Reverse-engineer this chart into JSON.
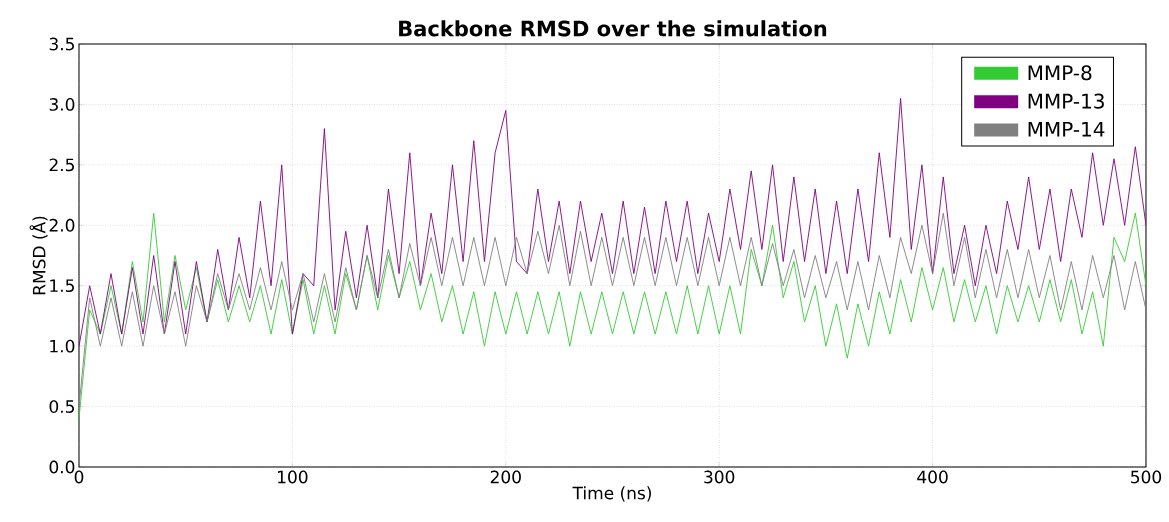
{
  "chart_data": {
    "type": "line",
    "title": "Backbone RMSD over the simulation",
    "xlabel": "Time (ns)",
    "ylabel": "RMSD (Å)",
    "x": [
      0,
      5,
      10,
      15,
      20,
      25,
      30,
      35,
      40,
      45,
      50,
      55,
      60,
      65,
      70,
      75,
      80,
      85,
      90,
      95,
      100,
      105,
      110,
      115,
      120,
      125,
      130,
      135,
      140,
      145,
      150,
      155,
      160,
      165,
      170,
      175,
      180,
      185,
      190,
      195,
      200,
      205,
      210,
      215,
      220,
      225,
      230,
      235,
      240,
      245,
      250,
      255,
      260,
      265,
      270,
      275,
      280,
      285,
      290,
      295,
      300,
      305,
      310,
      315,
      320,
      325,
      330,
      335,
      340,
      345,
      350,
      355,
      360,
      365,
      370,
      375,
      380,
      385,
      390,
      395,
      400,
      405,
      410,
      415,
      420,
      425,
      430,
      435,
      440,
      445,
      450,
      455,
      460,
      465,
      470,
      475,
      480,
      485,
      490,
      495,
      500
    ],
    "series": [
      {
        "name": "MMP-8",
        "color": "#33cc33",
        "values": [
          0.4,
          1.3,
          1.1,
          1.5,
          1.1,
          1.7,
          1.2,
          2.1,
          1.2,
          1.75,
          1.3,
          1.65,
          1.2,
          1.55,
          1.2,
          1.5,
          1.2,
          1.5,
          1.1,
          1.55,
          1.1,
          1.55,
          1.1,
          1.5,
          1.1,
          1.6,
          1.3,
          1.75,
          1.3,
          1.75,
          1.4,
          1.7,
          1.3,
          1.6,
          1.2,
          1.5,
          1.1,
          1.45,
          1.0,
          1.45,
          1.1,
          1.45,
          1.1,
          1.45,
          1.1,
          1.45,
          1.0,
          1.45,
          1.1,
          1.45,
          1.1,
          1.45,
          1.1,
          1.45,
          1.1,
          1.45,
          1.1,
          1.5,
          1.1,
          1.5,
          1.1,
          1.5,
          1.1,
          1.8,
          1.5,
          2.0,
          1.4,
          1.7,
          1.2,
          1.5,
          1.0,
          1.35,
          0.9,
          1.35,
          1.0,
          1.45,
          1.1,
          1.55,
          1.2,
          1.65,
          1.3,
          1.65,
          1.2,
          1.55,
          1.2,
          1.5,
          1.1,
          1.5,
          1.2,
          1.5,
          1.2,
          1.55,
          1.2,
          1.55,
          1.1,
          1.45,
          1.0,
          1.9,
          1.7,
          2.1,
          1.5
        ]
      },
      {
        "name": "MMP-13",
        "color": "#800080",
        "values": [
          1.0,
          1.5,
          1.1,
          1.6,
          1.1,
          1.65,
          1.1,
          1.75,
          1.1,
          1.7,
          1.1,
          1.7,
          1.2,
          1.8,
          1.3,
          1.9,
          1.4,
          2.2,
          1.5,
          2.5,
          1.1,
          1.6,
          1.5,
          2.8,
          1.3,
          1.95,
          1.4,
          2.0,
          1.4,
          2.3,
          1.6,
          2.6,
          1.5,
          2.1,
          1.6,
          2.5,
          1.7,
          2.7,
          1.7,
          2.6,
          2.95,
          1.7,
          1.6,
          2.3,
          1.7,
          2.2,
          1.6,
          2.2,
          1.7,
          2.1,
          1.6,
          2.2,
          1.6,
          2.15,
          1.6,
          2.2,
          1.7,
          2.2,
          1.6,
          2.1,
          1.7,
          2.3,
          1.8,
          2.45,
          1.8,
          2.5,
          1.7,
          2.4,
          1.7,
          2.3,
          1.6,
          2.2,
          1.6,
          2.3,
          1.7,
          2.6,
          1.9,
          3.05,
          1.8,
          2.5,
          1.6,
          2.4,
          1.6,
          2.0,
          1.5,
          2.0,
          1.6,
          2.2,
          1.8,
          2.4,
          1.8,
          2.3,
          1.7,
          2.3,
          1.9,
          2.6,
          2.0,
          2.55,
          2.0,
          2.65,
          2.0
        ]
      },
      {
        "name": "MMP-14",
        "color": "#808080",
        "values": [
          0.5,
          1.4,
          1.0,
          1.4,
          1.0,
          1.45,
          1.0,
          1.5,
          1.1,
          1.45,
          1.0,
          1.5,
          1.2,
          1.6,
          1.3,
          1.6,
          1.3,
          1.65,
          1.3,
          1.7,
          1.3,
          1.6,
          1.2,
          1.6,
          1.2,
          1.65,
          1.3,
          1.75,
          1.4,
          1.8,
          1.4,
          1.85,
          1.5,
          1.9,
          1.5,
          1.9,
          1.5,
          1.9,
          1.5,
          1.9,
          1.5,
          1.9,
          1.6,
          1.95,
          1.6,
          2.0,
          1.5,
          1.95,
          1.5,
          1.9,
          1.5,
          1.9,
          1.5,
          1.9,
          1.5,
          1.9,
          1.5,
          1.9,
          1.5,
          1.9,
          1.5,
          1.9,
          1.5,
          1.9,
          1.5,
          1.85,
          1.5,
          1.8,
          1.4,
          1.75,
          1.4,
          1.7,
          1.3,
          1.7,
          1.3,
          1.75,
          1.4,
          1.9,
          1.6,
          2.0,
          1.6,
          2.1,
          1.5,
          1.9,
          1.4,
          1.8,
          1.4,
          1.8,
          1.4,
          1.8,
          1.4,
          1.75,
          1.3,
          1.7,
          1.3,
          1.75,
          1.4,
          1.75,
          1.3,
          1.7,
          1.3
        ]
      }
    ],
    "xlim": [
      0,
      500
    ],
    "ylim": [
      0,
      3.5
    ],
    "xticks": [
      0,
      100,
      200,
      300,
      400,
      500
    ],
    "yticks": [
      {
        "value": 0,
        "label": "0.0"
      },
      {
        "value": 0.5,
        "label": "0.5"
      },
      {
        "value": 1,
        "label": "1.0"
      },
      {
        "value": 1.5,
        "label": "1.5"
      },
      {
        "value": 2,
        "label": "2.0"
      },
      {
        "value": 2.5,
        "label": "2.5"
      },
      {
        "value": 3,
        "label": "3.0"
      },
      {
        "value": 3.5,
        "label": "3.5"
      }
    ],
    "grid": true,
    "legend": "top right",
    "marker": "none",
    "line_style": "solid"
  }
}
